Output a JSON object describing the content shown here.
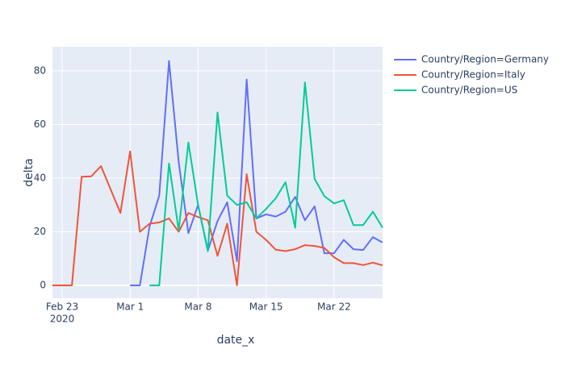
{
  "chart_data": {
    "type": "line",
    "x_label": "date_x",
    "y_label": "delta",
    "xlim": [
      "2020-02-22",
      "2020-03-27"
    ],
    "xticks": [
      {
        "value": "2020-02-23",
        "label": "Feb 23"
      },
      {
        "value": "2020-03-01",
        "label": "Mar 1"
      },
      {
        "value": "2020-03-08",
        "label": "Mar 8"
      },
      {
        "value": "2020-03-15",
        "label": "Mar 15"
      },
      {
        "value": "2020-03-22",
        "label": "Mar 22"
      }
    ],
    "x_year_label": "2020",
    "ylim": [
      -4.8,
      89
    ],
    "yticks": [
      0,
      20,
      40,
      60,
      80
    ],
    "grid": true,
    "legend": "right",
    "series": [
      {
        "name": "Country/Region=Germany",
        "color": "#636efa",
        "x": [
          "2020-03-01",
          "2020-03-02",
          "2020-03-03",
          "2020-03-04",
          "2020-03-05",
          "2020-03-06",
          "2020-03-07",
          "2020-03-08",
          "2020-03-09",
          "2020-03-10",
          "2020-03-11",
          "2020-03-12",
          "2020-03-13",
          "2020-03-14",
          "2020-03-15",
          "2020-03-16",
          "2020-03-17",
          "2020-03-18",
          "2020-03-19",
          "2020-03-20",
          "2020-03-21",
          "2020-03-22",
          "2020-03-23",
          "2020-03-24",
          "2020-03-25",
          "2020-03-26",
          "2020-03-27"
        ],
        "values": [
          0,
          0,
          22,
          33.5,
          83.7,
          46,
          19.5,
          30,
          13,
          24,
          31,
          9,
          76.8,
          25,
          26.5,
          25.7,
          27.5,
          33,
          24.3,
          29.5,
          12,
          12,
          17,
          13.5,
          13.2,
          18,
          16
        ]
      },
      {
        "name": "Country/Region=Italy",
        "color": "#ef553b",
        "x": [
          "2020-02-22",
          "2020-02-24",
          "2020-02-25",
          "2020-02-26",
          "2020-02-27",
          "2020-02-29",
          "2020-03-01",
          "2020-03-02",
          "2020-03-03",
          "2020-03-04",
          "2020-03-05",
          "2020-03-06",
          "2020-03-07",
          "2020-03-08",
          "2020-03-09",
          "2020-03-10",
          "2020-03-11",
          "2020-03-12",
          "2020-03-13",
          "2020-03-14",
          "2020-03-15",
          "2020-03-16",
          "2020-03-17",
          "2020-03-18",
          "2020-03-19",
          "2020-03-20",
          "2020-03-21",
          "2020-03-22",
          "2020-03-23",
          "2020-03-24",
          "2020-03-25",
          "2020-03-26",
          "2020-03-27"
        ],
        "values": [
          0,
          0,
          40.5,
          40.7,
          44.5,
          27,
          50,
          20,
          23,
          23.5,
          25,
          20,
          27,
          25.5,
          24.3,
          11,
          23,
          0,
          41.5,
          20,
          17,
          13.3,
          12.8,
          13.5,
          15,
          14.7,
          14,
          10.5,
          8.3,
          8.3,
          7.6,
          8.5,
          7.5
        ]
      },
      {
        "name": "Country/Region=US",
        "color": "#00cc96",
        "x": [
          "2020-03-03",
          "2020-03-04",
          "2020-03-05",
          "2020-03-06",
          "2020-03-07",
          "2020-03-08",
          "2020-03-09",
          "2020-03-10",
          "2020-03-11",
          "2020-03-12",
          "2020-03-13",
          "2020-03-14",
          "2020-03-15",
          "2020-03-16",
          "2020-03-17",
          "2020-03-18",
          "2020-03-19",
          "2020-03-20",
          "2020-03-21",
          "2020-03-22",
          "2020-03-23",
          "2020-03-24",
          "2020-03-25",
          "2020-03-26",
          "2020-03-27"
        ],
        "values": [
          0,
          0,
          45.5,
          20.5,
          53.3,
          30,
          12.8,
          64.5,
          33.5,
          30,
          31,
          25,
          28.5,
          32.5,
          38.5,
          21.5,
          75.7,
          39.7,
          33.3,
          30.6,
          31.8,
          22.5,
          22.5,
          27.5,
          21.5
        ]
      }
    ]
  }
}
